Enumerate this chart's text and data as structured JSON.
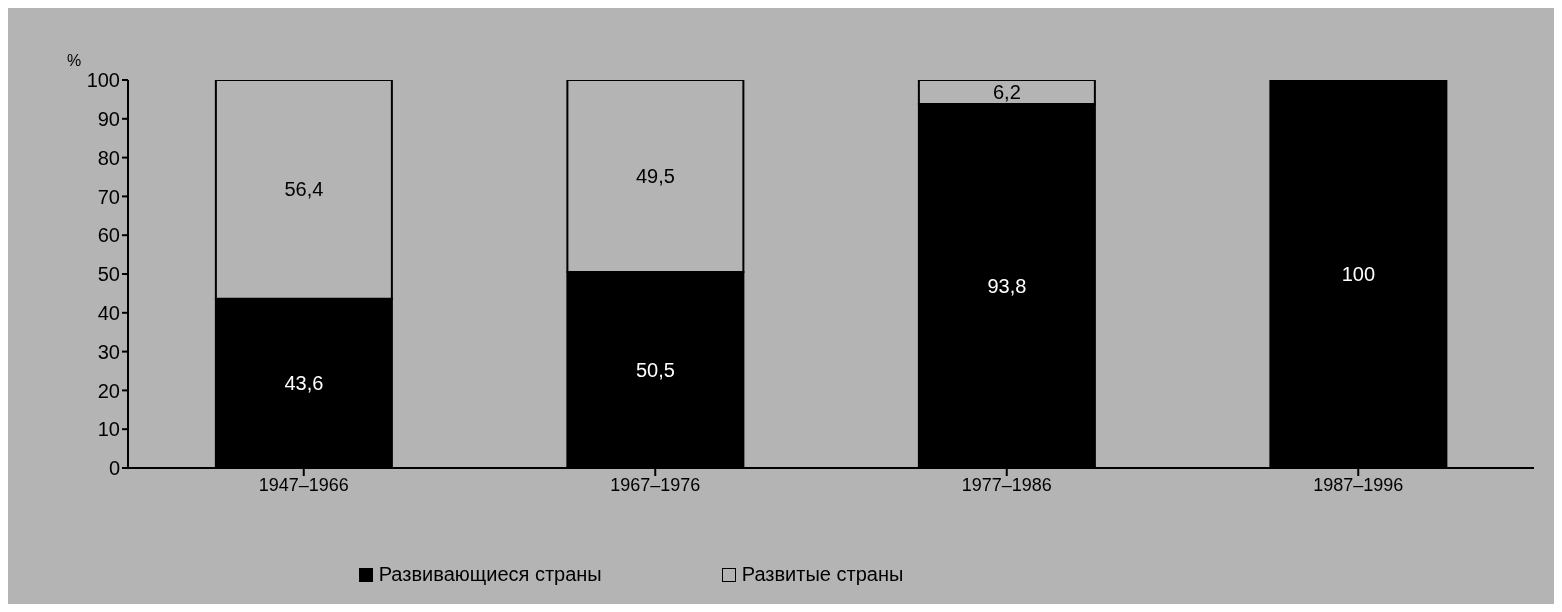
{
  "chart_data": {
    "type": "bar",
    "stacked": true,
    "ylabel": "%",
    "categories": [
      "1947–1966",
      "1967–1976",
      "1977–1986",
      "1987–1996"
    ],
    "series": [
      {
        "name": "Развивающиеся страны",
        "color": "#000000",
        "values": [
          43.6,
          50.5,
          93.8,
          100
        ],
        "value_labels": [
          "43,6",
          "50,5",
          "93,8",
          "100"
        ]
      },
      {
        "name": "Развитые страны",
        "color": "#b4b4b4",
        "values": [
          56.4,
          49.5,
          6.2,
          0
        ],
        "value_labels": [
          "56,4",
          "49,5",
          "6,2",
          null
        ]
      }
    ],
    "ylim": [
      0,
      100
    ],
    "yticks": [
      0,
      10,
      20,
      30,
      40,
      50,
      60,
      70,
      80,
      90,
      100
    ],
    "grid": false,
    "legend": "bottom"
  }
}
